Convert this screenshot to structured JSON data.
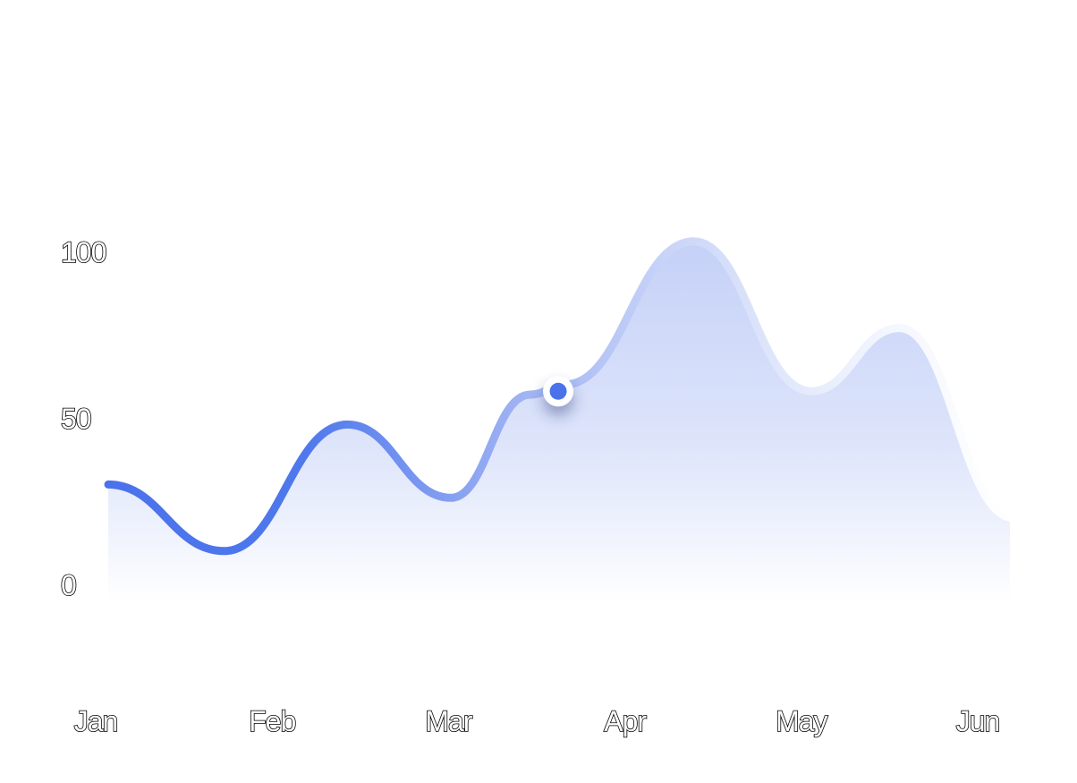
{
  "chart_data": {
    "type": "area",
    "categories": [
      "Jan",
      "Feb",
      "Mar",
      "Apr",
      "May",
      "Jun"
    ],
    "y_ticks": [
      0,
      50,
      100
    ],
    "ylim": [
      0,
      100
    ],
    "series": [
      {
        "points": [
          {
            "x": 0.0,
            "y": 30
          },
          {
            "x": 0.66,
            "y": 10
          },
          {
            "x": 1.36,
            "y": 48
          },
          {
            "x": 1.95,
            "y": 26
          },
          {
            "x": 2.4,
            "y": 57
          },
          {
            "x": 2.6,
            "y": 60
          },
          {
            "x": 3.33,
            "y": 103
          },
          {
            "x": 4.0,
            "y": 58
          },
          {
            "x": 4.5,
            "y": 77
          },
          {
            "x": 5.15,
            "y": 20
          }
        ],
        "highlight": {
          "x": 2.56,
          "y": 58
        }
      }
    ],
    "line_color_start": "#4A72EB",
    "line_color_end": "#EEF2FD",
    "fill_color": "#C4D0F7",
    "marker_color": "#4A72EB",
    "grid": false
  }
}
